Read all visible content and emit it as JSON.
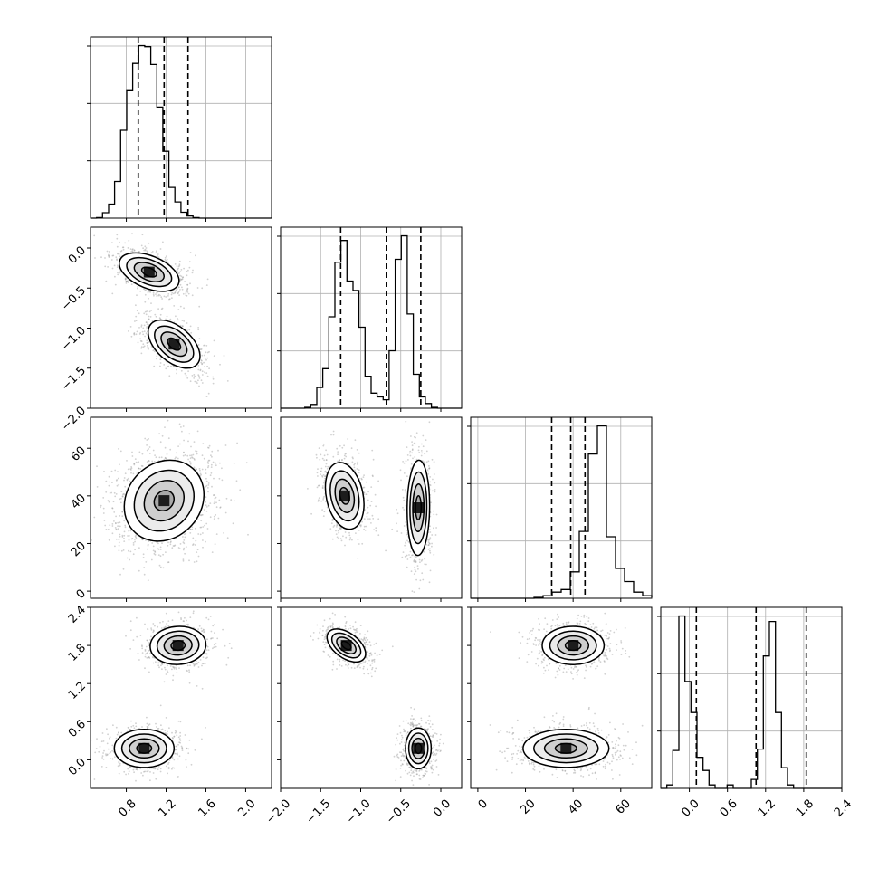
{
  "chart_data": {
    "type": "corner",
    "title": "",
    "n_params": 4,
    "axis_labels": [
      "",
      "",
      "",
      ""
    ],
    "ranges": [
      [
        0.44,
        2.26
      ],
      [
        -2.0,
        0.26
      ],
      [
        -3,
        73
      ],
      [
        -0.45,
        2.4
      ]
    ],
    "ticks": [
      [
        0.8,
        1.2,
        1.6,
        2.0
      ],
      [
        -2.0,
        -1.5,
        -1.0,
        -0.5,
        0.0
      ],
      [
        0,
        20,
        40,
        60
      ],
      [
        0.0,
        0.6,
        1.2,
        1.8,
        2.4
      ]
    ],
    "tick_labels": [
      [
        "0.8",
        "1.2",
        "1.6",
        "2.0"
      ],
      [
        "−2.0",
        "−1.5",
        "−1.0",
        "−0.5",
        "0.0"
      ],
      [
        "0",
        "20",
        "40",
        "60"
      ],
      [
        "0.0",
        "0.6",
        "1.2",
        "1.8",
        "2.4"
      ]
    ],
    "grid": true,
    "quantiles": [
      [
        0.92,
        1.18,
        1.42
      ],
      [
        -1.25,
        -0.68,
        -0.25
      ],
      [
        31,
        39,
        45
      ],
      [
        0.11,
        1.05,
        1.84
      ]
    ],
    "histograms": [
      {
        "edges_start": 0.44,
        "bin_width": 0.0606,
        "counts": [
          0,
          1,
          10,
          26,
          68,
          163,
          238,
          287,
          320,
          318,
          285,
          206,
          124,
          57,
          30,
          11,
          4,
          1,
          0,
          0,
          0,
          0,
          0,
          0,
          0,
          0,
          0,
          0,
          0,
          0
        ]
      },
      {
        "edges_start": -2.0,
        "bin_width": 0.0753,
        "counts": [
          0,
          0,
          0,
          0,
          1,
          4,
          22,
          42,
          97,
          155,
          178,
          135,
          125,
          86,
          34,
          16,
          12,
          9,
          61,
          158,
          183,
          100,
          36,
          12,
          5,
          1,
          0,
          0,
          0,
          0
        ]
      },
      {
        "edges_start": -3,
        "bin_width": 3.8,
        "counts": [
          0,
          0,
          0,
          0,
          0,
          0,
          0,
          1,
          3,
          7,
          10,
          30,
          76,
          164,
          196,
          70,
          34,
          19,
          7,
          3,
          1,
          0,
          0,
          0
        ]
      },
      {
        "edges_start": -0.45,
        "bin_width": 0.095,
        "counts": [
          0,
          5,
          55,
          250,
          155,
          110,
          45,
          26,
          5,
          0,
          0,
          5,
          0,
          0,
          0,
          13,
          57,
          192,
          242,
          110,
          30,
          5,
          0,
          0,
          0,
          0,
          0,
          0,
          0,
          0
        ]
      }
    ],
    "pairs": [
      {
        "row": 1,
        "col": 0,
        "modes": [
          {
            "x": 1.03,
            "y": -0.3,
            "sx": 0.15,
            "sy": 0.12,
            "rho": -0.45,
            "w": 0.5
          },
          {
            "x": 1.28,
            "y": -1.2,
            "sx": 0.13,
            "sy": 0.15,
            "rho": -0.5,
            "w": 0.5
          }
        ]
      },
      {
        "row": 2,
        "col": 0,
        "modes": [
          {
            "x": 1.18,
            "y": 38,
            "sx": 0.2,
            "sy": 8.5,
            "rho": 0.15,
            "w": 1.0
          }
        ]
      },
      {
        "row": 2,
        "col": 1,
        "modes": [
          {
            "x": -1.2,
            "y": 40,
            "sx": 0.12,
            "sy": 7.0,
            "rho": -0.25,
            "w": 0.5
          },
          {
            "x": -0.28,
            "y": 35,
            "sx": 0.07,
            "sy": 10.0,
            "rho": 0.05,
            "w": 0.5
          }
        ]
      },
      {
        "row": 3,
        "col": 0,
        "modes": [
          {
            "x": 1.32,
            "y": 1.8,
            "sx": 0.14,
            "sy": 0.15,
            "rho": 0.05,
            "w": 0.5
          },
          {
            "x": 0.98,
            "y": 0.18,
            "sx": 0.15,
            "sy": 0.15,
            "rho": 0.0,
            "w": 0.5
          }
        ]
      },
      {
        "row": 3,
        "col": 1,
        "modes": [
          {
            "x": -1.18,
            "y": 1.8,
            "sx": 0.12,
            "sy": 0.13,
            "rho": -0.5,
            "w": 0.5
          },
          {
            "x": -0.28,
            "y": 0.18,
            "sx": 0.08,
            "sy": 0.16,
            "rho": 0.0,
            "w": 0.5
          }
        ]
      },
      {
        "row": 3,
        "col": 2,
        "modes": [
          {
            "x": 40,
            "y": 1.8,
            "sx": 6.5,
            "sy": 0.15,
            "rho": 0.0,
            "w": 0.5
          },
          {
            "x": 37,
            "y": 0.18,
            "sx": 9.0,
            "sy": 0.15,
            "rho": 0.0,
            "w": 0.5
          }
        ]
      }
    ]
  }
}
